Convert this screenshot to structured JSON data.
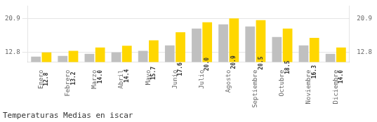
{
  "chart_data": {
    "type": "bar",
    "title": "Temperaturas Medias en iscar",
    "categories": [
      "Enero",
      "Febrero",
      "Marzo",
      "Abril",
      "Mayo",
      "Junio",
      "Julio",
      "Agosto",
      "Septiembre",
      "Octubre",
      "Noviembre",
      "Diciembre"
    ],
    "series": [
      {
        "color": "#C0C0C0",
        "values": [
          11.8,
          12.0,
          12.5,
          12.8,
          13.2,
          14.5,
          18.5,
          19.5,
          19.0,
          16.5,
          14.5,
          12.5
        ]
      },
      {
        "color": "#FFD700",
        "values": [
          12.8,
          13.2,
          14.0,
          14.4,
          15.7,
          17.6,
          20.0,
          20.9,
          20.5,
          18.5,
          16.3,
          14.0
        ],
        "value_labels": [
          "12.8",
          "13.2",
          "14.0",
          "14.4",
          "15.7",
          "17.6",
          "20.0",
          "20.9",
          "20.5",
          "18.5",
          "16.3",
          "14.0"
        ],
        "data_labels": true
      }
    ],
    "ylim": [
      10.5,
      23.9
    ],
    "yticks": [
      12.8,
      20.9
    ],
    "y2lim": [
      10.5,
      23.9
    ],
    "y2ticks": [
      12.8,
      20.9
    ],
    "grid": true
  }
}
